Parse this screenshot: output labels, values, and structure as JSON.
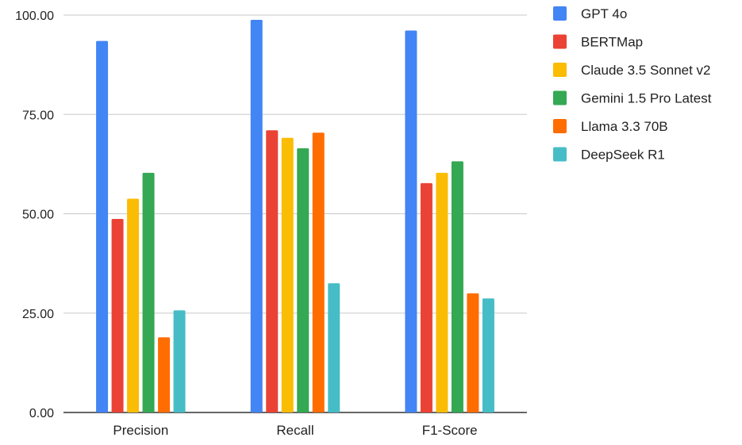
{
  "chart_data": {
    "type": "bar",
    "title": "",
    "xlabel": "",
    "ylabel": "",
    "categories": [
      "Precision",
      "Recall",
      "F1-Score"
    ],
    "ylim": [
      0,
      100
    ],
    "yticks": [
      "0.00",
      "25.00",
      "50.00",
      "75.00",
      "100.00"
    ],
    "grid": true,
    "legend_position": "right",
    "series": [
      {
        "name": "GPT 4o",
        "color": "#4285F4",
        "values": [
          93.5,
          98.8,
          96.1
        ]
      },
      {
        "name": "BERTMap",
        "color": "#EA4335",
        "values": [
          48.7,
          71.0,
          57.7
        ]
      },
      {
        "name": "Claude 3.5 Sonnet v2",
        "color": "#FBBC04",
        "values": [
          53.8,
          69.1,
          60.3
        ]
      },
      {
        "name": "Gemini 1.5 Pro Latest",
        "color": "#34A853",
        "values": [
          60.3,
          66.5,
          63.2
        ]
      },
      {
        "name": "Llama 3.3 70B",
        "color": "#FF6D01",
        "values": [
          18.9,
          70.4,
          30.0
        ]
      },
      {
        "name": "DeepSeek R1",
        "color": "#46BDC6",
        "values": [
          25.7,
          32.5,
          28.7
        ]
      }
    ]
  }
}
